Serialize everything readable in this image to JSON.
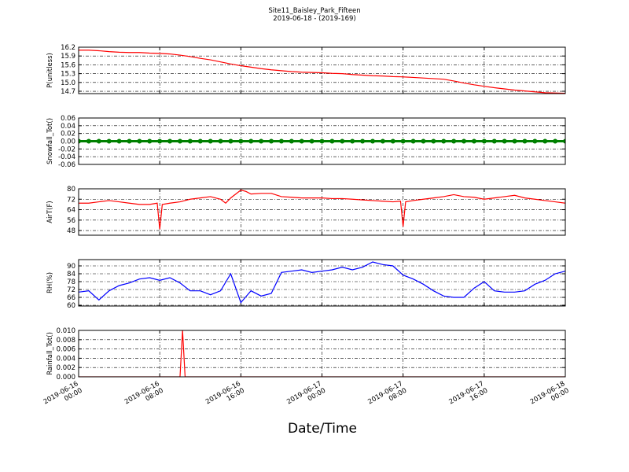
{
  "title": "Site11_Baisley_Park_Fifteen",
  "subtitle": "2019-06-18 - (2019-169)",
  "xlabel": "Date/Time",
  "chart_data": [
    {
      "type": "line",
      "ylabel": "P(unitless)",
      "color": "#ff0000",
      "grid": true,
      "x": [
        "2019-06-16 00:00",
        "2019-06-16 01:00",
        "2019-06-16 02:00",
        "2019-06-16 03:00",
        "2019-06-16 04:00",
        "2019-06-16 05:00",
        "2019-06-16 06:00",
        "2019-06-16 07:00",
        "2019-06-16 08:00",
        "2019-06-16 09:00",
        "2019-06-16 10:00",
        "2019-06-16 11:00",
        "2019-06-16 12:00",
        "2019-06-16 13:00",
        "2019-06-16 14:00",
        "2019-06-16 15:00",
        "2019-06-16 16:00",
        "2019-06-16 17:00",
        "2019-06-16 18:00",
        "2019-06-16 19:00",
        "2019-06-16 20:00",
        "2019-06-16 21:00",
        "2019-06-16 22:00",
        "2019-06-16 23:00",
        "2019-06-17 00:00",
        "2019-06-17 01:00",
        "2019-06-17 02:00",
        "2019-06-17 03:00",
        "2019-06-17 04:00",
        "2019-06-17 05:00",
        "2019-06-17 06:00",
        "2019-06-17 07:00",
        "2019-06-17 08:00",
        "2019-06-17 09:00",
        "2019-06-17 10:00",
        "2019-06-17 11:00",
        "2019-06-17 12:00",
        "2019-06-17 13:00",
        "2019-06-17 14:00",
        "2019-06-17 15:00",
        "2019-06-17 16:00",
        "2019-06-17 17:00",
        "2019-06-17 18:00",
        "2019-06-17 19:00",
        "2019-06-17 20:00",
        "2019-06-17 21:00",
        "2019-06-17 22:00",
        "2019-06-17 23:00",
        "2019-06-18 00:00"
      ],
      "values": [
        16.1,
        16.1,
        16.08,
        16.05,
        16.03,
        16.02,
        16.02,
        16.0,
        15.99,
        15.97,
        15.93,
        15.88,
        15.82,
        15.77,
        15.7,
        15.63,
        15.57,
        15.52,
        15.47,
        15.43,
        15.4,
        15.37,
        15.35,
        15.34,
        15.33,
        15.31,
        15.3,
        15.27,
        15.25,
        15.23,
        15.22,
        15.2,
        15.19,
        15.17,
        15.15,
        15.13,
        15.11,
        15.05,
        14.98,
        14.92,
        14.87,
        14.82,
        14.78,
        14.74,
        14.71,
        14.68,
        14.65,
        14.64,
        14.63
      ],
      "ylim": [
        14.62,
        16.2
      ],
      "yticks": [
        14.7,
        {
          "value": 15.0,
          "label": "15.0"
        },
        15.3,
        15.6,
        15.9,
        16.2
      ],
      "xlim": [
        "2019-06-16 00:00",
        "2019-06-18 00:00"
      ],
      "xticks": [
        "2019-06-16 00:00",
        "2019-06-16 08:00",
        "2019-06-16 16:00",
        "2019-06-17 00:00",
        "2019-06-17 08:00",
        "2019-06-17 16:00",
        "2019-06-18 00:00"
      ]
    },
    {
      "type": "line",
      "ylabel": "Snowfall_Tot()",
      "color": "#008000",
      "grid": true,
      "marker": true,
      "x": [
        "2019-06-16 00:00",
        "2019-06-16 01:00",
        "2019-06-16 02:00",
        "2019-06-16 03:00",
        "2019-06-16 04:00",
        "2019-06-16 05:00",
        "2019-06-16 06:00",
        "2019-06-16 07:00",
        "2019-06-16 08:00",
        "2019-06-16 09:00",
        "2019-06-16 10:00",
        "2019-06-16 11:00",
        "2019-06-16 12:00",
        "2019-06-16 13:00",
        "2019-06-16 14:00",
        "2019-06-16 15:00",
        "2019-06-16 16:00",
        "2019-06-16 17:00",
        "2019-06-16 18:00",
        "2019-06-16 19:00",
        "2019-06-16 20:00",
        "2019-06-16 21:00",
        "2019-06-16 22:00",
        "2019-06-16 23:00",
        "2019-06-17 00:00",
        "2019-06-17 01:00",
        "2019-06-17 02:00",
        "2019-06-17 03:00",
        "2019-06-17 04:00",
        "2019-06-17 05:00",
        "2019-06-17 06:00",
        "2019-06-17 07:00",
        "2019-06-17 08:00",
        "2019-06-17 09:00",
        "2019-06-17 10:00",
        "2019-06-17 11:00",
        "2019-06-17 12:00",
        "2019-06-17 13:00",
        "2019-06-17 14:00",
        "2019-06-17 15:00",
        "2019-06-17 16:00",
        "2019-06-17 17:00",
        "2019-06-17 18:00",
        "2019-06-17 19:00",
        "2019-06-17 20:00",
        "2019-06-17 21:00",
        "2019-06-17 22:00",
        "2019-06-17 23:00",
        "2019-06-18 00:00"
      ],
      "values": [
        0,
        0,
        0,
        0,
        0,
        0,
        0,
        0,
        0,
        0,
        0,
        0,
        0,
        0,
        0,
        0,
        0,
        0,
        0,
        0,
        0,
        0,
        0,
        0,
        0,
        0,
        0,
        0,
        0,
        0,
        0,
        0,
        0,
        0,
        0,
        0,
        0,
        0,
        0,
        0,
        0,
        0,
        0,
        0,
        0,
        0,
        0,
        0,
        0
      ],
      "ylim": [
        -0.06,
        0.06
      ],
      "yticks": [
        -0.06,
        -0.04,
        -0.02,
        {
          "value": 0,
          "label": "0.00"
        },
        0.02,
        0.04,
        0.06
      ],
      "xlim": [
        "2019-06-16 00:00",
        "2019-06-18 00:00"
      ],
      "xticks": [
        "2019-06-16 00:00",
        "2019-06-16 08:00",
        "2019-06-16 16:00",
        "2019-06-17 00:00",
        "2019-06-17 08:00",
        "2019-06-17 16:00",
        "2019-06-18 00:00"
      ]
    },
    {
      "type": "line",
      "ylabel": "AirT(F)",
      "color": "#ff0000",
      "grid": true,
      "x": [
        "2019-06-16 00:00",
        "2019-06-16 01:00",
        "2019-06-16 02:00",
        "2019-06-16 03:00",
        "2019-06-16 04:00",
        "2019-06-16 05:00",
        "2019-06-16 06:00",
        "2019-06-16 07:00",
        "2019-06-16 07:45",
        "2019-06-16 08:00",
        "2019-06-16 08:15",
        "2019-06-16 09:00",
        "2019-06-16 10:00",
        "2019-06-16 11:00",
        "2019-06-16 12:00",
        "2019-06-16 13:00",
        "2019-06-16 14:00",
        "2019-06-16 14:30",
        "2019-06-16 15:00",
        "2019-06-16 15:30",
        "2019-06-16 16:00",
        "2019-06-16 16:30",
        "2019-06-16 17:00",
        "2019-06-16 18:00",
        "2019-06-16 19:00",
        "2019-06-16 20:00",
        "2019-06-16 21:00",
        "2019-06-16 22:00",
        "2019-06-16 23:00",
        "2019-06-17 00:00",
        "2019-06-17 01:00",
        "2019-06-17 02:00",
        "2019-06-17 03:00",
        "2019-06-17 04:00",
        "2019-06-17 05:00",
        "2019-06-17 06:00",
        "2019-06-17 07:00",
        "2019-06-17 07:45",
        "2019-06-17 08:00",
        "2019-06-17 08:15",
        "2019-06-17 09:00",
        "2019-06-17 10:00",
        "2019-06-17 11:00",
        "2019-06-17 12:00",
        "2019-06-17 13:00",
        "2019-06-17 14:00",
        "2019-06-17 15:00",
        "2019-06-17 16:00",
        "2019-06-17 17:00",
        "2019-06-17 18:00",
        "2019-06-17 19:00",
        "2019-06-17 20:00",
        "2019-06-17 21:00",
        "2019-06-17 22:00",
        "2019-06-17 23:00",
        "2019-06-18 00:00"
      ],
      "values": [
        69,
        69,
        70,
        71,
        70,
        69,
        68,
        68,
        69,
        49,
        68,
        69,
        70,
        72,
        73,
        74,
        72,
        69,
        73,
        76,
        79,
        78,
        76,
        76.5,
        76.5,
        74,
        73.5,
        73,
        73,
        73,
        72.5,
        72.5,
        72,
        71.5,
        71,
        70.5,
        70,
        70.5,
        51,
        70,
        71,
        72,
        73,
        74,
        75.5,
        74,
        73.5,
        72,
        73,
        74,
        75,
        73,
        72,
        71,
        70,
        69
      ],
      "ylim": [
        44.4,
        80
      ],
      "yticks": [
        48,
        56,
        64,
        72,
        80
      ],
      "xlim": [
        "2019-06-16 00:00",
        "2019-06-18 00:00"
      ],
      "xticks": [
        "2019-06-16 00:00",
        "2019-06-16 08:00",
        "2019-06-16 16:00",
        "2019-06-17 00:00",
        "2019-06-17 08:00",
        "2019-06-17 16:00",
        "2019-06-18 00:00"
      ]
    },
    {
      "type": "line",
      "ylabel": "RH(%)",
      "color": "#0000ff",
      "grid": true,
      "x": [
        "2019-06-16 00:00",
        "2019-06-16 01:00",
        "2019-06-16 02:00",
        "2019-06-16 03:00",
        "2019-06-16 04:00",
        "2019-06-16 05:00",
        "2019-06-16 06:00",
        "2019-06-16 07:00",
        "2019-06-16 08:00",
        "2019-06-16 09:00",
        "2019-06-16 10:00",
        "2019-06-16 11:00",
        "2019-06-16 12:00",
        "2019-06-16 13:00",
        "2019-06-16 14:00",
        "2019-06-16 15:00",
        "2019-06-16 16:00",
        "2019-06-16 17:00",
        "2019-06-16 18:00",
        "2019-06-16 19:00",
        "2019-06-16 20:00",
        "2019-06-16 21:00",
        "2019-06-16 22:00",
        "2019-06-16 23:00",
        "2019-06-17 00:00",
        "2019-06-17 01:00",
        "2019-06-17 02:00",
        "2019-06-17 03:00",
        "2019-06-17 04:00",
        "2019-06-17 05:00",
        "2019-06-17 06:00",
        "2019-06-17 07:00",
        "2019-06-17 08:00",
        "2019-06-17 09:00",
        "2019-06-17 10:00",
        "2019-06-17 11:00",
        "2019-06-17 12:00",
        "2019-06-17 13:00",
        "2019-06-17 14:00",
        "2019-06-17 15:00",
        "2019-06-17 16:00",
        "2019-06-17 17:00",
        "2019-06-17 18:00",
        "2019-06-17 19:00",
        "2019-06-17 20:00",
        "2019-06-17 21:00",
        "2019-06-17 22:00",
        "2019-06-17 23:00",
        "2019-06-18 00:00"
      ],
      "values": [
        70,
        71,
        64,
        71,
        75,
        77,
        80,
        81,
        79,
        81,
        77,
        71,
        71,
        68,
        71,
        84,
        62,
        71,
        67,
        69,
        85,
        86,
        87,
        85,
        86,
        87,
        89,
        87,
        89,
        93,
        91,
        90,
        83,
        80,
        76,
        71,
        67,
        66,
        66,
        73,
        78,
        71,
        70,
        70,
        71,
        76,
        79,
        84,
        86
      ],
      "ylim": [
        59.4,
        94.8
      ],
      "yticks": [
        60,
        66,
        72,
        78,
        84,
        90
      ],
      "xlim": [
        "2019-06-16 00:00",
        "2019-06-18 00:00"
      ],
      "xticks": [
        "2019-06-16 00:00",
        "2019-06-16 08:00",
        "2019-06-16 16:00",
        "2019-06-17 00:00",
        "2019-06-17 08:00",
        "2019-06-17 16:00",
        "2019-06-18 00:00"
      ]
    },
    {
      "type": "line",
      "ylabel": "Rainfall_Tot()",
      "color": "#ff0000",
      "grid": true,
      "x": [
        "2019-06-16 00:00",
        "2019-06-16 10:00",
        "2019-06-16 10:15",
        "2019-06-16 10:30",
        "2019-06-18 00:00"
      ],
      "values": [
        0,
        0,
        0.01,
        0,
        0
      ],
      "ylim": [
        0,
        0.01
      ],
      "yticks": [
        {
          "value": 0,
          "label": "0.000"
        },
        {
          "value": 0.002,
          "label": "0.002"
        },
        {
          "value": 0.004,
          "label": "0.004"
        },
        {
          "value": 0.006,
          "label": "0.006"
        },
        {
          "value": 0.008,
          "label": "0.008"
        },
        {
          "value": 0.01,
          "label": "0.010"
        }
      ],
      "xlim": [
        "2019-06-16 00:00",
        "2019-06-18 00:00"
      ],
      "xticks": [
        "2019-06-16 00:00",
        "2019-06-16 08:00",
        "2019-06-16 16:00",
        "2019-06-17 00:00",
        "2019-06-17 08:00",
        "2019-06-17 16:00",
        "2019-06-18 00:00"
      ]
    }
  ]
}
